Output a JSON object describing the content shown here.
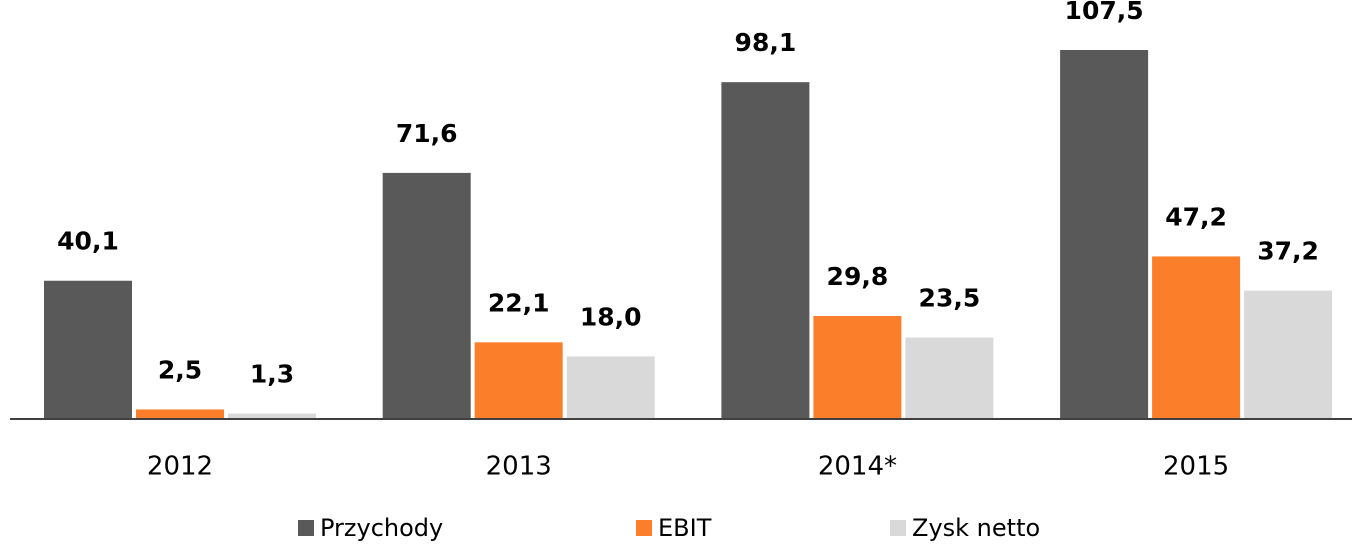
{
  "chart_data": {
    "type": "bar",
    "categories": [
      "2012",
      "2013",
      "2014*",
      "2015"
    ],
    "series": [
      {
        "name": "Przychody",
        "color": "#595959",
        "values": [
          40.1,
          71.6,
          98.1,
          107.5
        ],
        "value_labels": [
          "40,1",
          "71,6",
          "98,1",
          "107,5"
        ]
      },
      {
        "name": "EBIT",
        "color": "#fb7e2a",
        "values": [
          2.5,
          22.1,
          29.8,
          47.2
        ],
        "value_labels": [
          "2,5",
          "22,1",
          "29,8",
          "47,2"
        ]
      },
      {
        "name": "Zysk netto",
        "color": "#d9d9d9",
        "values": [
          1.3,
          18.0,
          23.5,
          37.2
        ],
        "value_labels": [
          "1,3",
          "18,0",
          "23,5",
          "37,2"
        ]
      }
    ],
    "legend": "bottom"
  }
}
